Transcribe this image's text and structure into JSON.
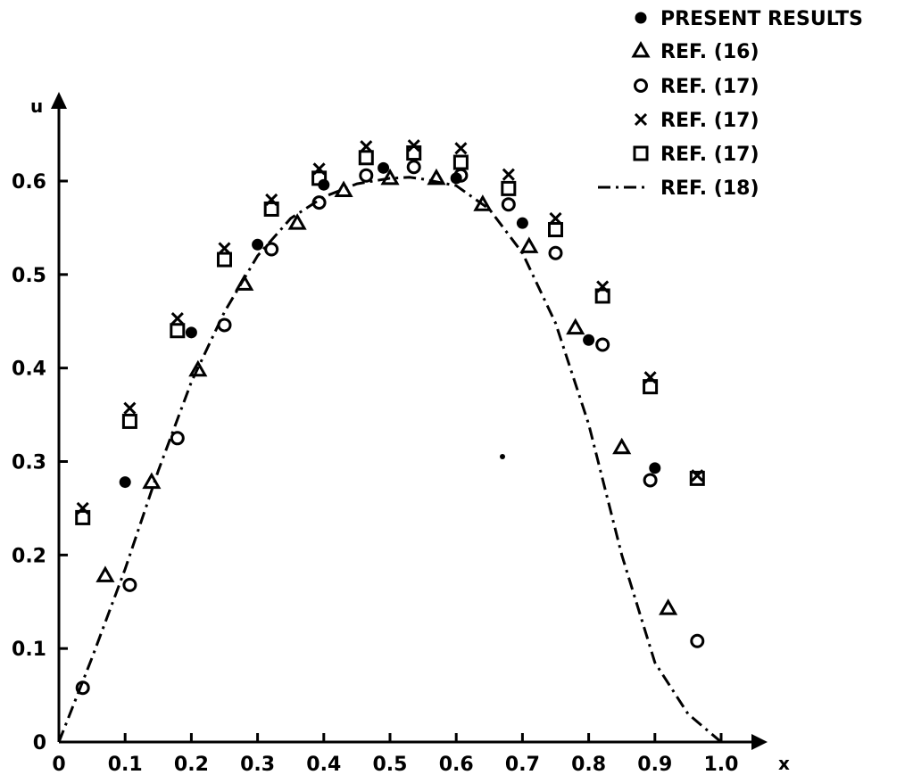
{
  "chart_data": {
    "type": "scatter",
    "title": "",
    "xlabel": "x",
    "ylabel": "u",
    "xlim": [
      0,
      1.05
    ],
    "ylim": [
      0,
      0.65
    ],
    "grid": false,
    "legend_position": "top-right",
    "x_ticks": [
      "0",
      "0.1",
      "0.2",
      "0.3",
      "0.4",
      "0.5",
      "0.6",
      "0.7",
      "0.8",
      "0.9",
      "1.0"
    ],
    "y_ticks": [
      "0",
      "0.1",
      "0.2",
      "0.3",
      "0.4",
      "0.5",
      "0.6"
    ],
    "series": [
      {
        "name": "PRESENT RESULTS",
        "marker": "filled-circle",
        "x": [
          0.1,
          0.2,
          0.3,
          0.4,
          0.49,
          0.6,
          0.7,
          0.8,
          0.9
        ],
        "y": [
          0.278,
          0.438,
          0.532,
          0.596,
          0.614,
          0.603,
          0.555,
          0.43,
          0.293
        ]
      },
      {
        "name": "REF. (16)",
        "marker": "triangle",
        "x": [
          0.07,
          0.14,
          0.21,
          0.28,
          0.36,
          0.43,
          0.5,
          0.57,
          0.64,
          0.71,
          0.78,
          0.85,
          0.92
        ],
        "y": [
          0.178,
          0.278,
          0.398,
          0.49,
          0.555,
          0.59,
          0.603,
          0.603,
          0.575,
          0.53,
          0.443,
          0.315,
          0.143
        ]
      },
      {
        "name": "REF. (17)",
        "marker": "open-circle",
        "x": [
          0.036,
          0.107,
          0.179,
          0.25,
          0.321,
          0.393,
          0.464,
          0.536,
          0.607,
          0.679,
          0.75,
          0.821,
          0.893,
          0.964
        ],
        "y": [
          0.058,
          0.168,
          0.325,
          0.446,
          0.527,
          0.577,
          0.606,
          0.615,
          0.606,
          0.575,
          0.523,
          0.425,
          0.28,
          0.108
        ]
      },
      {
        "name": "REF. (17)",
        "marker": "cross",
        "x": [
          0.036,
          0.107,
          0.179,
          0.25,
          0.321,
          0.393,
          0.464,
          0.536,
          0.607,
          0.679,
          0.75,
          0.821,
          0.893,
          0.964
        ],
        "y": [
          0.25,
          0.357,
          0.453,
          0.528,
          0.58,
          0.613,
          0.637,
          0.638,
          0.635,
          0.607,
          0.56,
          0.487,
          0.39,
          0.285
        ]
      },
      {
        "name": "REF. (17)",
        "marker": "square",
        "x": [
          0.036,
          0.107,
          0.179,
          0.25,
          0.321,
          0.393,
          0.464,
          0.536,
          0.607,
          0.679,
          0.75,
          0.821,
          0.893,
          0.964
        ],
        "y": [
          0.24,
          0.343,
          0.44,
          0.516,
          0.57,
          0.603,
          0.625,
          0.63,
          0.62,
          0.592,
          0.548,
          0.477,
          0.38,
          0.282
        ]
      },
      {
        "name": "REF. (18)",
        "marker": "dash-dot-line",
        "x": [
          0,
          0.05,
          0.1,
          0.15,
          0.2,
          0.25,
          0.3,
          0.35,
          0.4,
          0.45,
          0.5,
          0.53,
          0.55,
          0.6,
          0.65,
          0.7,
          0.75,
          0.8,
          0.85,
          0.9,
          0.95,
          1.0
        ],
        "y": [
          0,
          0.09,
          0.185,
          0.29,
          0.385,
          0.46,
          0.52,
          0.56,
          0.583,
          0.597,
          0.603,
          0.604,
          0.602,
          0.595,
          0.57,
          0.523,
          0.448,
          0.34,
          0.2,
          0.085,
          0.03,
          0
        ]
      }
    ]
  }
}
